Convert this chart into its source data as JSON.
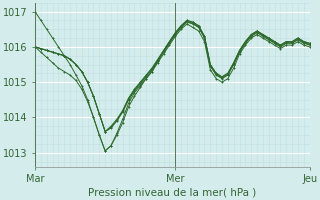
{
  "background_color": "#d4ecec",
  "grid_color_major": "#ffffff",
  "grid_color_minor": "#c0dede",
  "line_color": "#2d6a2d",
  "marker_color": "#2d6a2d",
  "title": "Pression niveau de la mer( hPa )",
  "xlim": [
    0,
    47
  ],
  "ylim": [
    1012.6,
    1017.25
  ],
  "yticks": [
    1013,
    1014,
    1015,
    1016,
    1017
  ],
  "xtick_labels": [
    "Mar",
    "Mer",
    "Jeu"
  ],
  "xtick_positions": [
    0,
    24,
    47
  ],
  "vline_x": [
    0,
    24,
    47
  ],
  "series": [
    [
      1017.0,
      1016.75,
      1016.5,
      1016.25,
      1016.0,
      1015.75,
      1015.5,
      1015.2,
      1014.9,
      1014.5,
      1014.0,
      1013.5,
      1013.05,
      1013.2,
      1013.55,
      1013.95,
      1014.4,
      1014.7,
      1014.9,
      1015.1,
      1015.3,
      1015.55,
      1015.8,
      1016.05,
      1016.3,
      1016.5,
      1016.65,
      1016.55,
      1016.45,
      1016.15,
      1015.35,
      1015.1,
      1015.0,
      1015.1,
      1015.4,
      1015.8,
      1016.05,
      1016.25,
      1016.35,
      1016.25,
      1016.15,
      1016.05,
      1015.95,
      1016.05,
      1016.05,
      1016.15,
      1016.05,
      1016.0
    ],
    [
      1016.0,
      1015.95,
      1015.9,
      1015.85,
      1015.8,
      1015.75,
      1015.65,
      1015.5,
      1015.3,
      1015.0,
      1014.6,
      1014.1,
      1013.6,
      1013.7,
      1013.9,
      1014.15,
      1014.5,
      1014.75,
      1014.95,
      1015.15,
      1015.35,
      1015.6,
      1015.85,
      1016.1,
      1016.35,
      1016.55,
      1016.7,
      1016.65,
      1016.55,
      1016.25,
      1015.45,
      1015.2,
      1015.1,
      1015.2,
      1015.5,
      1015.85,
      1016.1,
      1016.3,
      1016.4,
      1016.3,
      1016.2,
      1016.1,
      1016.0,
      1016.1,
      1016.1,
      1016.2,
      1016.1,
      1016.05
    ],
    [
      1016.0,
      1015.95,
      1015.9,
      1015.85,
      1015.8,
      1015.75,
      1015.65,
      1015.5,
      1015.3,
      1015.0,
      1014.6,
      1014.1,
      1013.6,
      1013.75,
      1013.95,
      1014.2,
      1014.55,
      1014.8,
      1015.0,
      1015.2,
      1015.4,
      1015.65,
      1015.9,
      1016.15,
      1016.4,
      1016.6,
      1016.75,
      1016.7,
      1016.6,
      1016.3,
      1015.5,
      1015.25,
      1015.15,
      1015.25,
      1015.55,
      1015.9,
      1016.15,
      1016.35,
      1016.45,
      1016.35,
      1016.25,
      1016.15,
      1016.05,
      1016.15,
      1016.15,
      1016.25,
      1016.15,
      1016.1
    ],
    [
      1016.0,
      1015.95,
      1015.9,
      1015.85,
      1015.8,
      1015.75,
      1015.65,
      1015.5,
      1015.3,
      1015.0,
      1014.6,
      1014.1,
      1013.6,
      1013.72,
      1013.92,
      1014.17,
      1014.52,
      1014.77,
      1014.97,
      1015.17,
      1015.37,
      1015.62,
      1015.87,
      1016.12,
      1016.37,
      1016.57,
      1016.72,
      1016.67,
      1016.57,
      1016.27,
      1015.47,
      1015.22,
      1015.12,
      1015.22,
      1015.52,
      1015.87,
      1016.12,
      1016.32,
      1016.42,
      1016.32,
      1016.22,
      1016.12,
      1016.02,
      1016.12,
      1016.12,
      1016.22,
      1016.12,
      1016.07
    ],
    [
      1016.0,
      1015.85,
      1015.7,
      1015.55,
      1015.4,
      1015.3,
      1015.2,
      1015.05,
      1014.8,
      1014.45,
      1014.0,
      1013.5,
      1013.05,
      1013.2,
      1013.5,
      1013.85,
      1014.3,
      1014.6,
      1014.85,
      1015.1,
      1015.3,
      1015.6,
      1015.9,
      1016.15,
      1016.4,
      1016.6,
      1016.75,
      1016.7,
      1016.6,
      1016.3,
      1015.5,
      1015.25,
      1015.15,
      1015.25,
      1015.55,
      1015.9,
      1016.15,
      1016.35,
      1016.45,
      1016.35,
      1016.25,
      1016.15,
      1016.05,
      1016.15,
      1016.15,
      1016.25,
      1016.15,
      1016.1
    ]
  ]
}
